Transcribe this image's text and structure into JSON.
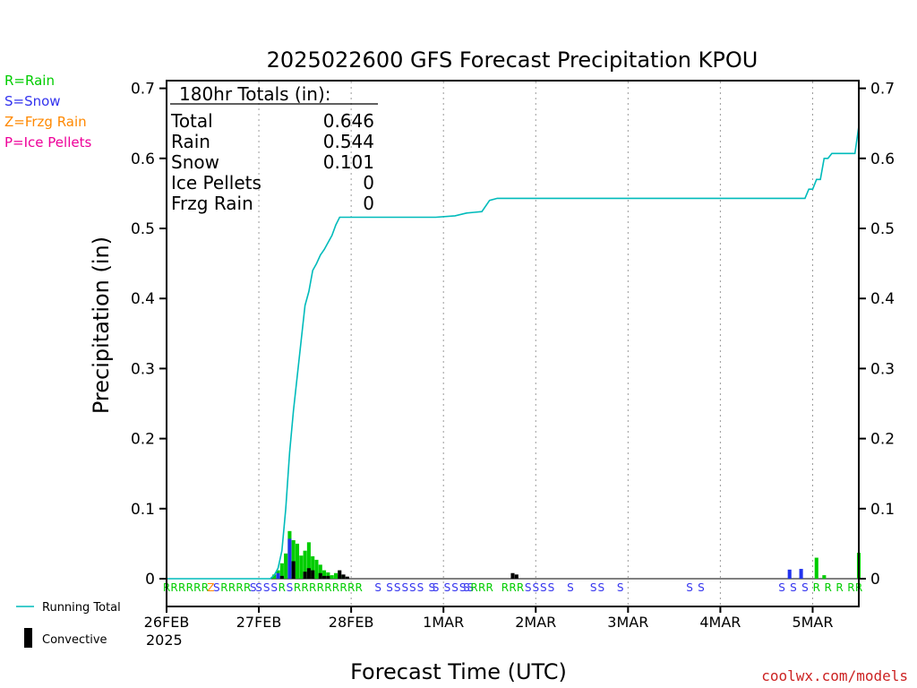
{
  "chart_data": {
    "type": "bar",
    "title": "2025022600 GFS Forecast Precipitation KPOU",
    "xlabel": "Forecast Time (UTC)",
    "ylabel": "Precipitation (in)",
    "ylim": [
      0,
      0.72
    ],
    "yticks": [
      "0",
      "0.1",
      "0.2",
      "0.3",
      "0.4",
      "0.5",
      "0.6",
      "0.7"
    ],
    "xticks": [
      "26FEB",
      "27FEB",
      "28FEB",
      "1MAR",
      "2MAR",
      "3MAR",
      "4MAR",
      "5MAR"
    ],
    "x_start_sublabel": "2025",
    "xlim_hours": [
      0,
      180
    ],
    "grid": "dotted vertical lines at each day",
    "totals_box": {
      "header": "180hr Totals (in):",
      "rows": [
        {
          "label": "Total",
          "value": "0.646"
        },
        {
          "label": "Rain",
          "value": "0.544"
        },
        {
          "label": "Snow",
          "value": "0.101"
        },
        {
          "label": "Ice Pellets",
          "value": "0"
        },
        {
          "label": "Frzg Rain",
          "value": "0"
        }
      ]
    },
    "ptype_legend": [
      {
        "text": "R=Rain",
        "color": "#00cc00"
      },
      {
        "text": "S=Snow",
        "color": "#3333ee"
      },
      {
        "text": "Z=Frzg Rain",
        "color": "#ff8800"
      },
      {
        "text": "P=Ice Pellets",
        "color": "#ee0099"
      }
    ],
    "series_legend": [
      {
        "text": "Running Total",
        "color": "#00bbbb"
      },
      {
        "text": "Convective",
        "color": "#000000"
      }
    ],
    "colors": {
      "rain": "#00cc00",
      "snow": "#2233ee",
      "convective": "#000000",
      "running_total": "#00bbbb"
    },
    "series": [
      {
        "name": "Running Total",
        "x": [
          0,
          27,
          28,
          29,
          30,
          31,
          32,
          33,
          34,
          35,
          36,
          37,
          38,
          39,
          40,
          41,
          42,
          43,
          44,
          45,
          46,
          47,
          48,
          50,
          60,
          70,
          75,
          78,
          80,
          82,
          84,
          86,
          90,
          110,
          120,
          130,
          140,
          150,
          160,
          165,
          166,
          167,
          168,
          169,
          170,
          171,
          172,
          173,
          174,
          175,
          176,
          177,
          178,
          179,
          180
        ],
        "values": [
          0,
          0,
          0.005,
          0.015,
          0.04,
          0.1,
          0.18,
          0.24,
          0.29,
          0.34,
          0.39,
          0.41,
          0.44,
          0.45,
          0.462,
          0.47,
          0.48,
          0.49,
          0.505,
          0.516,
          0.516,
          0.516,
          0.516,
          0.516,
          0.516,
          0.516,
          0.518,
          0.522,
          0.523,
          0.524,
          0.54,
          0.543,
          0.543,
          0.543,
          0.543,
          0.543,
          0.543,
          0.543,
          0.543,
          0.543,
          0.543,
          0.556,
          0.556,
          0.57,
          0.57,
          0.6,
          0.6,
          0.607,
          0.607,
          0.607,
          0.607,
          0.607,
          0.607,
          0.607,
          0.646
        ]
      },
      {
        "name": "Rain",
        "bars": [
          [
            28,
            0.006
          ],
          [
            29,
            0.012
          ],
          [
            30,
            0.022
          ],
          [
            31,
            0.036
          ],
          [
            32,
            0.068
          ],
          [
            33,
            0.055
          ],
          [
            34,
            0.05
          ],
          [
            35,
            0.033
          ],
          [
            36,
            0.04
          ],
          [
            37,
            0.052
          ],
          [
            38,
            0.032
          ],
          [
            39,
            0.027
          ],
          [
            40,
            0.02
          ],
          [
            41,
            0.012
          ],
          [
            42,
            0.009
          ],
          [
            43,
            0.005
          ],
          [
            44,
            0.008
          ],
          [
            45,
            0.005
          ],
          [
            46,
            0.003
          ],
          [
            169,
            0.03
          ],
          [
            171,
            0.005
          ],
          [
            180,
            0.037
          ]
        ]
      },
      {
        "name": "Snow",
        "bars": [
          [
            29,
            0.008
          ],
          [
            32,
            0.057
          ],
          [
            162,
            0.013
          ],
          [
            165,
            0.014
          ]
        ]
      },
      {
        "name": "Convective",
        "bars": [
          [
            30,
            0.004
          ],
          [
            33,
            0.025
          ],
          [
            36,
            0.01
          ],
          [
            37,
            0.015
          ],
          [
            38,
            0.012
          ],
          [
            40,
            0.008
          ],
          [
            41,
            0.004
          ],
          [
            42,
            0.004
          ],
          [
            45,
            0.012
          ],
          [
            46,
            0.006
          ],
          [
            47,
            0.003
          ],
          [
            90,
            0.008
          ],
          [
            91,
            0.006
          ]
        ]
      }
    ],
    "ptype_strip": [
      {
        "h": 0,
        "c": "R"
      },
      {
        "h": 2,
        "c": "R"
      },
      {
        "h": 4,
        "c": "R"
      },
      {
        "h": 6,
        "c": "R"
      },
      {
        "h": 8,
        "c": "R"
      },
      {
        "h": 10,
        "c": "R"
      },
      {
        "h": 11.5,
        "c": "Z"
      },
      {
        "h": 13,
        "c": "S"
      },
      {
        "h": 15,
        "c": "R"
      },
      {
        "h": 17,
        "c": "R"
      },
      {
        "h": 19,
        "c": "R"
      },
      {
        "h": 21,
        "c": "R"
      },
      {
        "h": 22.5,
        "c": "S"
      },
      {
        "h": 24,
        "c": "S"
      },
      {
        "h": 26,
        "c": "S"
      },
      {
        "h": 28,
        "c": "S"
      },
      {
        "h": 30,
        "c": "R"
      },
      {
        "h": 32,
        "c": "S"
      },
      {
        "h": 34,
        "c": "R"
      },
      {
        "h": 36,
        "c": "R"
      },
      {
        "h": 38,
        "c": "R"
      },
      {
        "h": 40,
        "c": "R"
      },
      {
        "h": 42,
        "c": "R"
      },
      {
        "h": 44,
        "c": "R"
      },
      {
        "h": 46,
        "c": "R"
      },
      {
        "h": 48,
        "c": "R"
      },
      {
        "h": 50,
        "c": "R"
      },
      {
        "h": 55,
        "c": "S"
      },
      {
        "h": 58,
        "c": "S"
      },
      {
        "h": 60,
        "c": "S"
      },
      {
        "h": 62,
        "c": "S"
      },
      {
        "h": 64,
        "c": "S"
      },
      {
        "h": 66,
        "c": "S"
      },
      {
        "h": 69,
        "c": "S"
      },
      {
        "h": 70,
        "c": "S"
      },
      {
        "h": 73,
        "c": "S"
      },
      {
        "h": 75,
        "c": "S"
      },
      {
        "h": 77,
        "c": "S"
      },
      {
        "h": 78,
        "c": "S"
      },
      {
        "h": 79,
        "c": "S"
      },
      {
        "h": 80,
        "c": "R"
      },
      {
        "h": 82,
        "c": "R"
      },
      {
        "h": 84,
        "c": "R"
      },
      {
        "h": 88,
        "c": "R"
      },
      {
        "h": 90,
        "c": "R"
      },
      {
        "h": 92,
        "c": "R"
      },
      {
        "h": 94,
        "c": "S"
      },
      {
        "h": 96,
        "c": "S"
      },
      {
        "h": 98,
        "c": "S"
      },
      {
        "h": 100,
        "c": "S"
      },
      {
        "h": 105,
        "c": "S"
      },
      {
        "h": 111,
        "c": "S"
      },
      {
        "h": 113,
        "c": "S"
      },
      {
        "h": 118,
        "c": "S"
      },
      {
        "h": 136,
        "c": "S"
      },
      {
        "h": 139,
        "c": "S"
      },
      {
        "h": 160,
        "c": "S"
      },
      {
        "h": 163,
        "c": "S"
      },
      {
        "h": 166,
        "c": "S"
      },
      {
        "h": 169,
        "c": "R"
      },
      {
        "h": 172,
        "c": "R"
      },
      {
        "h": 175,
        "c": "R"
      },
      {
        "h": 178,
        "c": "R"
      },
      {
        "h": 180,
        "c": "R"
      }
    ]
  },
  "footer": {
    "credit": "coolwx.com/models"
  }
}
